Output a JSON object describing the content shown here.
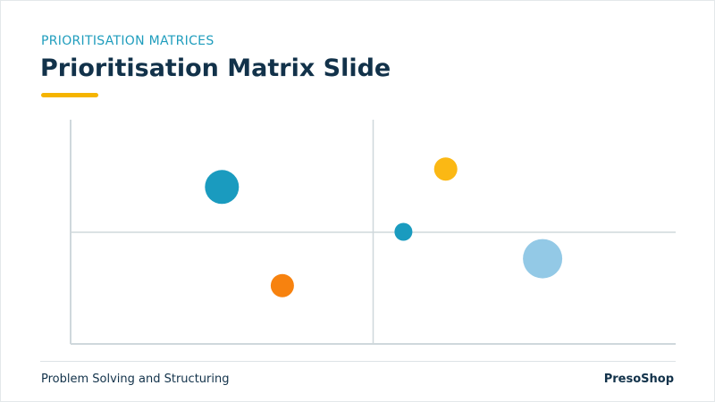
{
  "slide": {
    "eyebrow": "PRIORITISATION MATRICES",
    "title": "Prioritisation Matrix Slide",
    "footer_left": "Problem Solving and Structuring",
    "footer_right": "PresoShop"
  },
  "colors": {
    "eyebrow": "#1f9dbd",
    "title": "#12324a",
    "accent_bar": "#f5b400",
    "axis": "#cfd8dc",
    "teal": "#1a9bbf",
    "yellow": "#fbb814",
    "orange": "#f7820f",
    "light_blue": "#93c9e6"
  },
  "chart_data": {
    "type": "scatter",
    "grid": "quadrants",
    "points": [
      {
        "x": 0.25,
        "y": 0.7,
        "size": 3,
        "color": "#1a9bbf"
      },
      {
        "x": 0.35,
        "y": 0.26,
        "size": 2,
        "color": "#f7820f"
      },
      {
        "x": 0.62,
        "y": 0.78,
        "size": 2,
        "color": "#fbb814"
      },
      {
        "x": 0.55,
        "y": 0.5,
        "size": 1,
        "color": "#1a9bbf"
      },
      {
        "x": 0.78,
        "y": 0.38,
        "size": 4,
        "color": "#93c9e6"
      }
    ]
  }
}
